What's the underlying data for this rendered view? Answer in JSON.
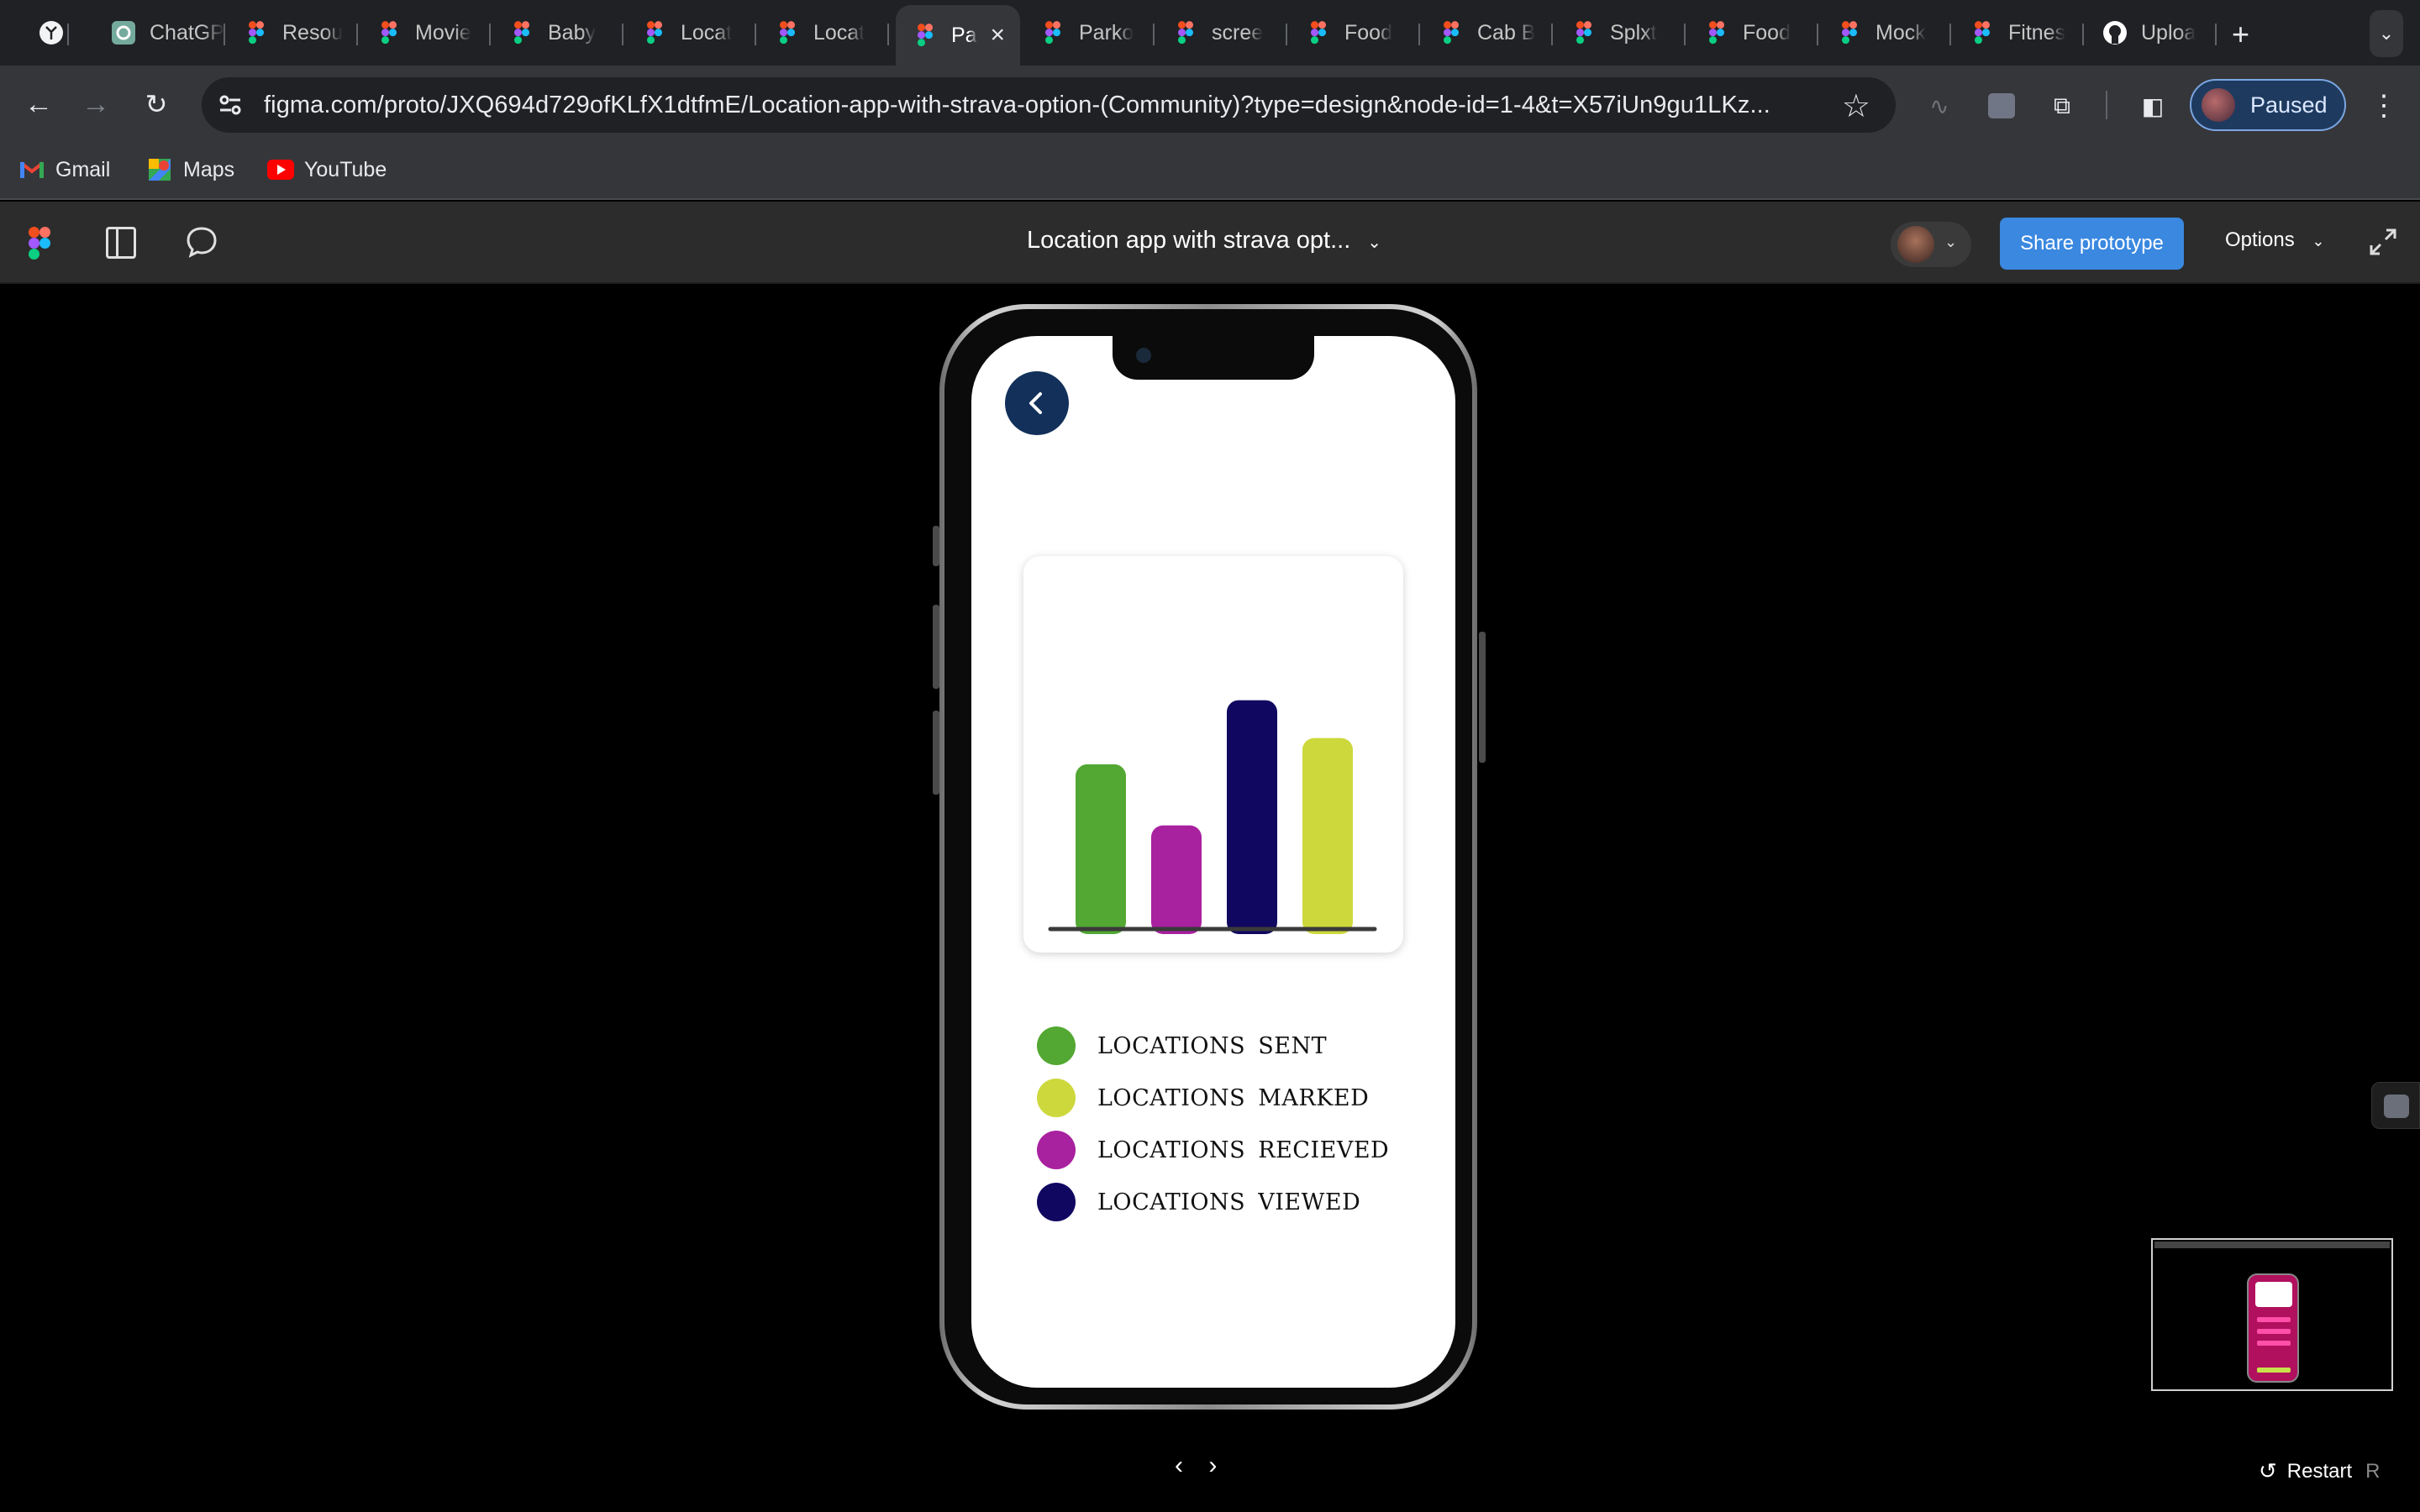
{
  "browser": {
    "tabs": [
      {
        "title": "",
        "icon": "perplexity-icon"
      },
      {
        "title": "ChatGPT",
        "icon": "chatgpt-icon"
      },
      {
        "title": "Resou",
        "icon": "figma-icon"
      },
      {
        "title": "Movie",
        "icon": "figma-icon"
      },
      {
        "title": "Baby",
        "icon": "figma-icon"
      },
      {
        "title": "Locat",
        "icon": "figma-icon"
      },
      {
        "title": "Locat",
        "icon": "figma-icon"
      },
      {
        "title": "Pa",
        "icon": "figma-icon",
        "active": true
      },
      {
        "title": "Parko",
        "icon": "figma-icon"
      },
      {
        "title": "scree",
        "icon": "figma-icon"
      },
      {
        "title": "Food",
        "icon": "figma-icon"
      },
      {
        "title": "Cab B",
        "icon": "figma-icon"
      },
      {
        "title": "Splxt",
        "icon": "figma-icon"
      },
      {
        "title": "Food",
        "icon": "figma-icon"
      },
      {
        "title": "Mock",
        "icon": "figma-icon"
      },
      {
        "title": "Fitnes",
        "icon": "figma-icon"
      },
      {
        "title": "Uploa",
        "icon": "github-icon"
      }
    ],
    "url": "figma.com/proto/JXQ694d729ofKLfX1dtfmE/Location-app-with-strava-option-(Community)?type=design&node-id=1-4&t=X57iUn9gu1LKz...",
    "profile_label": "Paused",
    "bookmarks": [
      {
        "label": "Gmail",
        "icon": "gmail-icon"
      },
      {
        "label": "Maps",
        "icon": "maps-icon"
      },
      {
        "label": "YouTube",
        "icon": "youtube-icon"
      }
    ]
  },
  "figma": {
    "file_title": "Location app with strava opt...",
    "share_label": "Share prototype",
    "options_label": "Options",
    "restart_label": "Restart",
    "restart_key": "R"
  },
  "app": {
    "chart_data": {
      "type": "bar",
      "categories": [
        "LOCATIONS SENT",
        "LOCATIONS RECIEVED",
        "LOCATIONS VIEWED",
        "LOCATIONS MARKED"
      ],
      "values": [
        112,
        70,
        156,
        130
      ],
      "colors": [
        "#52a832",
        "#a8219f",
        "#100760",
        "#cdd83c"
      ],
      "title": "",
      "xlabel": "",
      "ylabel": "",
      "ylim": [
        0,
        180
      ],
      "grid": false
    },
    "legend": [
      {
        "label": "LOCATIONS SENT",
        "color": "#52a832"
      },
      {
        "label": "LOCATIONS MARKED",
        "color": "#cdd83c"
      },
      {
        "label": "LOCATIONS RECIEVED",
        "color": "#a8219f"
      },
      {
        "label": "LOCATIONS VIEWED",
        "color": "#100760"
      }
    ],
    "back_icon": "chevron-left-icon",
    "accent": "#12305a"
  }
}
